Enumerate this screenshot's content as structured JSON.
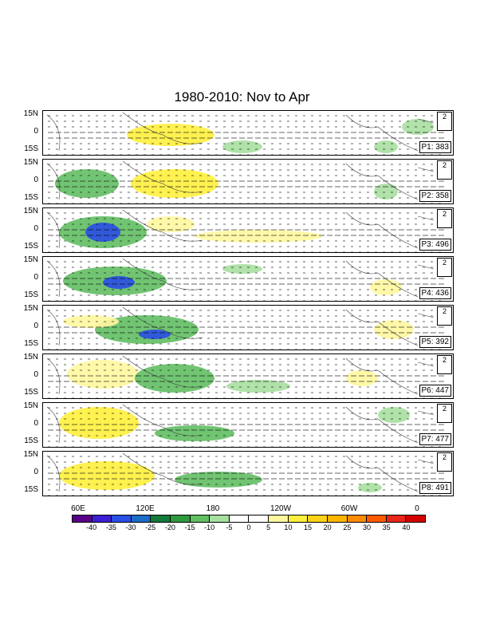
{
  "title": "1980-2010: Nov to Apr",
  "lat_labels": [
    "15N",
    "0",
    "15S"
  ],
  "lon_labels": [
    "60E",
    "120E",
    "180",
    "120W",
    "60W",
    "0"
  ],
  "reference_vector": "2",
  "panels": [
    {
      "label": "P1: 383"
    },
    {
      "label": "P2: 358"
    },
    {
      "label": "P3: 496"
    },
    {
      "label": "P4: 436"
    },
    {
      "label": "P5: 392"
    },
    {
      "label": "P6: 447"
    },
    {
      "label": "P7: 477"
    },
    {
      "label": "P8: 491"
    }
  ],
  "colorbar": {
    "labels": [
      "-40",
      "-35",
      "-30",
      "-25",
      "-20",
      "-15",
      "-10",
      "-5",
      "0",
      "5",
      "10",
      "15",
      "20",
      "25",
      "30",
      "35",
      "40"
    ],
    "colors": [
      "#5a0088",
      "#3b1fd6",
      "#2a4ee6",
      "#1c6cc8",
      "#127a3a",
      "#2e9a3e",
      "#62be63",
      "#a7dfa0",
      "#ffffff",
      "#ffffff",
      "#fff7a0",
      "#ffef3d",
      "#ffd21a",
      "#ffb400",
      "#ff8c00",
      "#ff5a00",
      "#e8261a",
      "#d40000"
    ]
  }
}
